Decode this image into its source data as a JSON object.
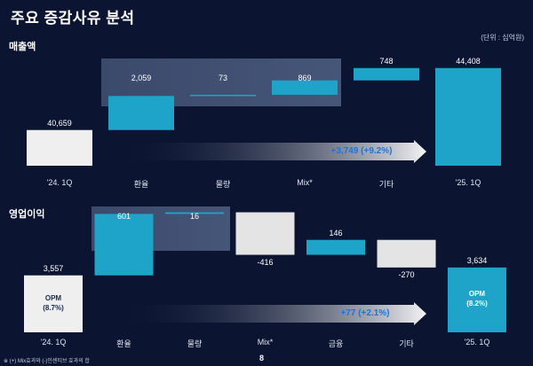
{
  "header": {
    "title": "주요 증감사유 분석",
    "unit": "(단위 : 십억원)"
  },
  "footnote": "※ (+) Mix효과와 (-)인센티브 효과의 합",
  "page_number": "8",
  "colors": {
    "background": "#0b1532",
    "accent_bar": "#1fa4c9",
    "base_bar": "#efefef",
    "negative_bar": "#e4e4e4",
    "highlight_panel": "#3f4e70"
  },
  "chart_data": [
    {
      "type": "bar",
      "subtype": "waterfall",
      "title": "매출액",
      "categories": [
        "'24. 1Q",
        "환율",
        "물량",
        "Mix*",
        "기타",
        "'25. 1Q"
      ],
      "value_labels": [
        "40,659",
        "2,059",
        "73",
        "869",
        "748",
        "44,408"
      ],
      "values": [
        40659,
        2059,
        73,
        869,
        748,
        44408
      ],
      "kinds": [
        "total",
        "increase",
        "increase",
        "increase",
        "increase",
        "total"
      ],
      "highlight_group": [
        "환율",
        "물량",
        "Mix*"
      ],
      "change_label": "+3,749 (+9.2%)"
    },
    {
      "type": "bar",
      "subtype": "waterfall",
      "title": "영업이익",
      "categories": [
        "'24. 1Q",
        "환율",
        "물량",
        "Mix*",
        "금융",
        "기타",
        "'25. 1Q"
      ],
      "value_labels": [
        "3,557",
        "601",
        "16",
        "-416",
        "146",
        "-270",
        "3,634"
      ],
      "values": [
        3557,
        601,
        16,
        -416,
        146,
        -270,
        3634
      ],
      "kinds": [
        "total",
        "increase",
        "increase",
        "decrease",
        "increase",
        "decrease",
        "total"
      ],
      "highlight_group": [
        "환율",
        "물량"
      ],
      "opm_labels": {
        "start": "OPM\n(8.7%)",
        "end": "OPM\n(8.2%)"
      },
      "change_label": "+77 (+2.1%)"
    }
  ]
}
